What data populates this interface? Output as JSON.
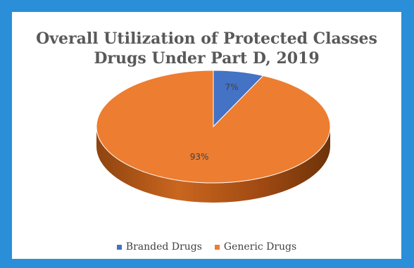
{
  "colors": {
    "page_background": "#2a8fd8",
    "branded": "#4472c4",
    "generic": "#ed7d31",
    "generic_side": "#a9541a"
  },
  "chart_data": {
    "type": "pie",
    "title_lines": [
      "Overall Utilization of Protected Classes",
      "Drugs Under Part D, 2019"
    ],
    "categories": [
      "Branded Drugs",
      "Generic Drugs"
    ],
    "values": [
      7,
      93
    ],
    "data_labels": [
      "7%",
      "93%"
    ],
    "colors": [
      "#4472c4",
      "#ed7d31"
    ],
    "legend_position": "bottom",
    "style": "3d"
  }
}
